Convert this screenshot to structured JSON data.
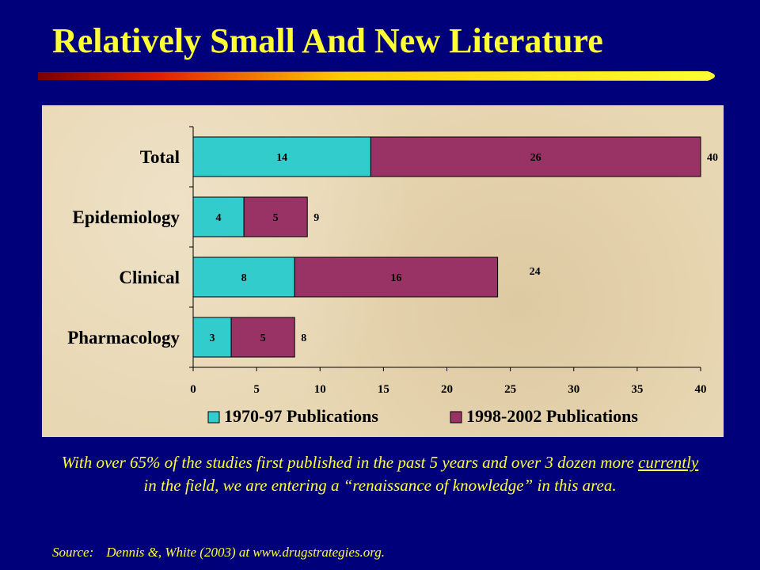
{
  "slide": {
    "title": "Relatively Small And New Literature",
    "caption_before": "With over 65% of the studies first published in the past 5 years and over 3 dozen more ",
    "caption_underlined": "currently",
    "caption_after": " in the field, we are entering a “renaissance of knowledge” in this area.",
    "source_label": "Source:",
    "source_text": "Dennis &, White (2003) at www.drugstrategies.org."
  },
  "colors": {
    "background": "#00007a",
    "title_text": "#ffff33",
    "series_1970": "#33cccc",
    "series_1998": "#993366",
    "panel": "#e8d7b3"
  },
  "chart_data": {
    "type": "bar",
    "orientation": "horizontal",
    "stacked": true,
    "categories": [
      "Total",
      "Epidemiology",
      "Clinical",
      "Pharmacology"
    ],
    "series": [
      {
        "name": "1970-97 Publications",
        "values": [
          14,
          4,
          8,
          3
        ]
      },
      {
        "name": "1998-2002 Publications",
        "values": [
          26,
          5,
          16,
          5
        ]
      }
    ],
    "totals": [
      40,
      9,
      24,
      8
    ],
    "xlim": [
      0,
      40
    ],
    "xticks": [
      0,
      5,
      10,
      15,
      20,
      25,
      30,
      35,
      40
    ],
    "grid": false,
    "legend_position": "bottom"
  }
}
